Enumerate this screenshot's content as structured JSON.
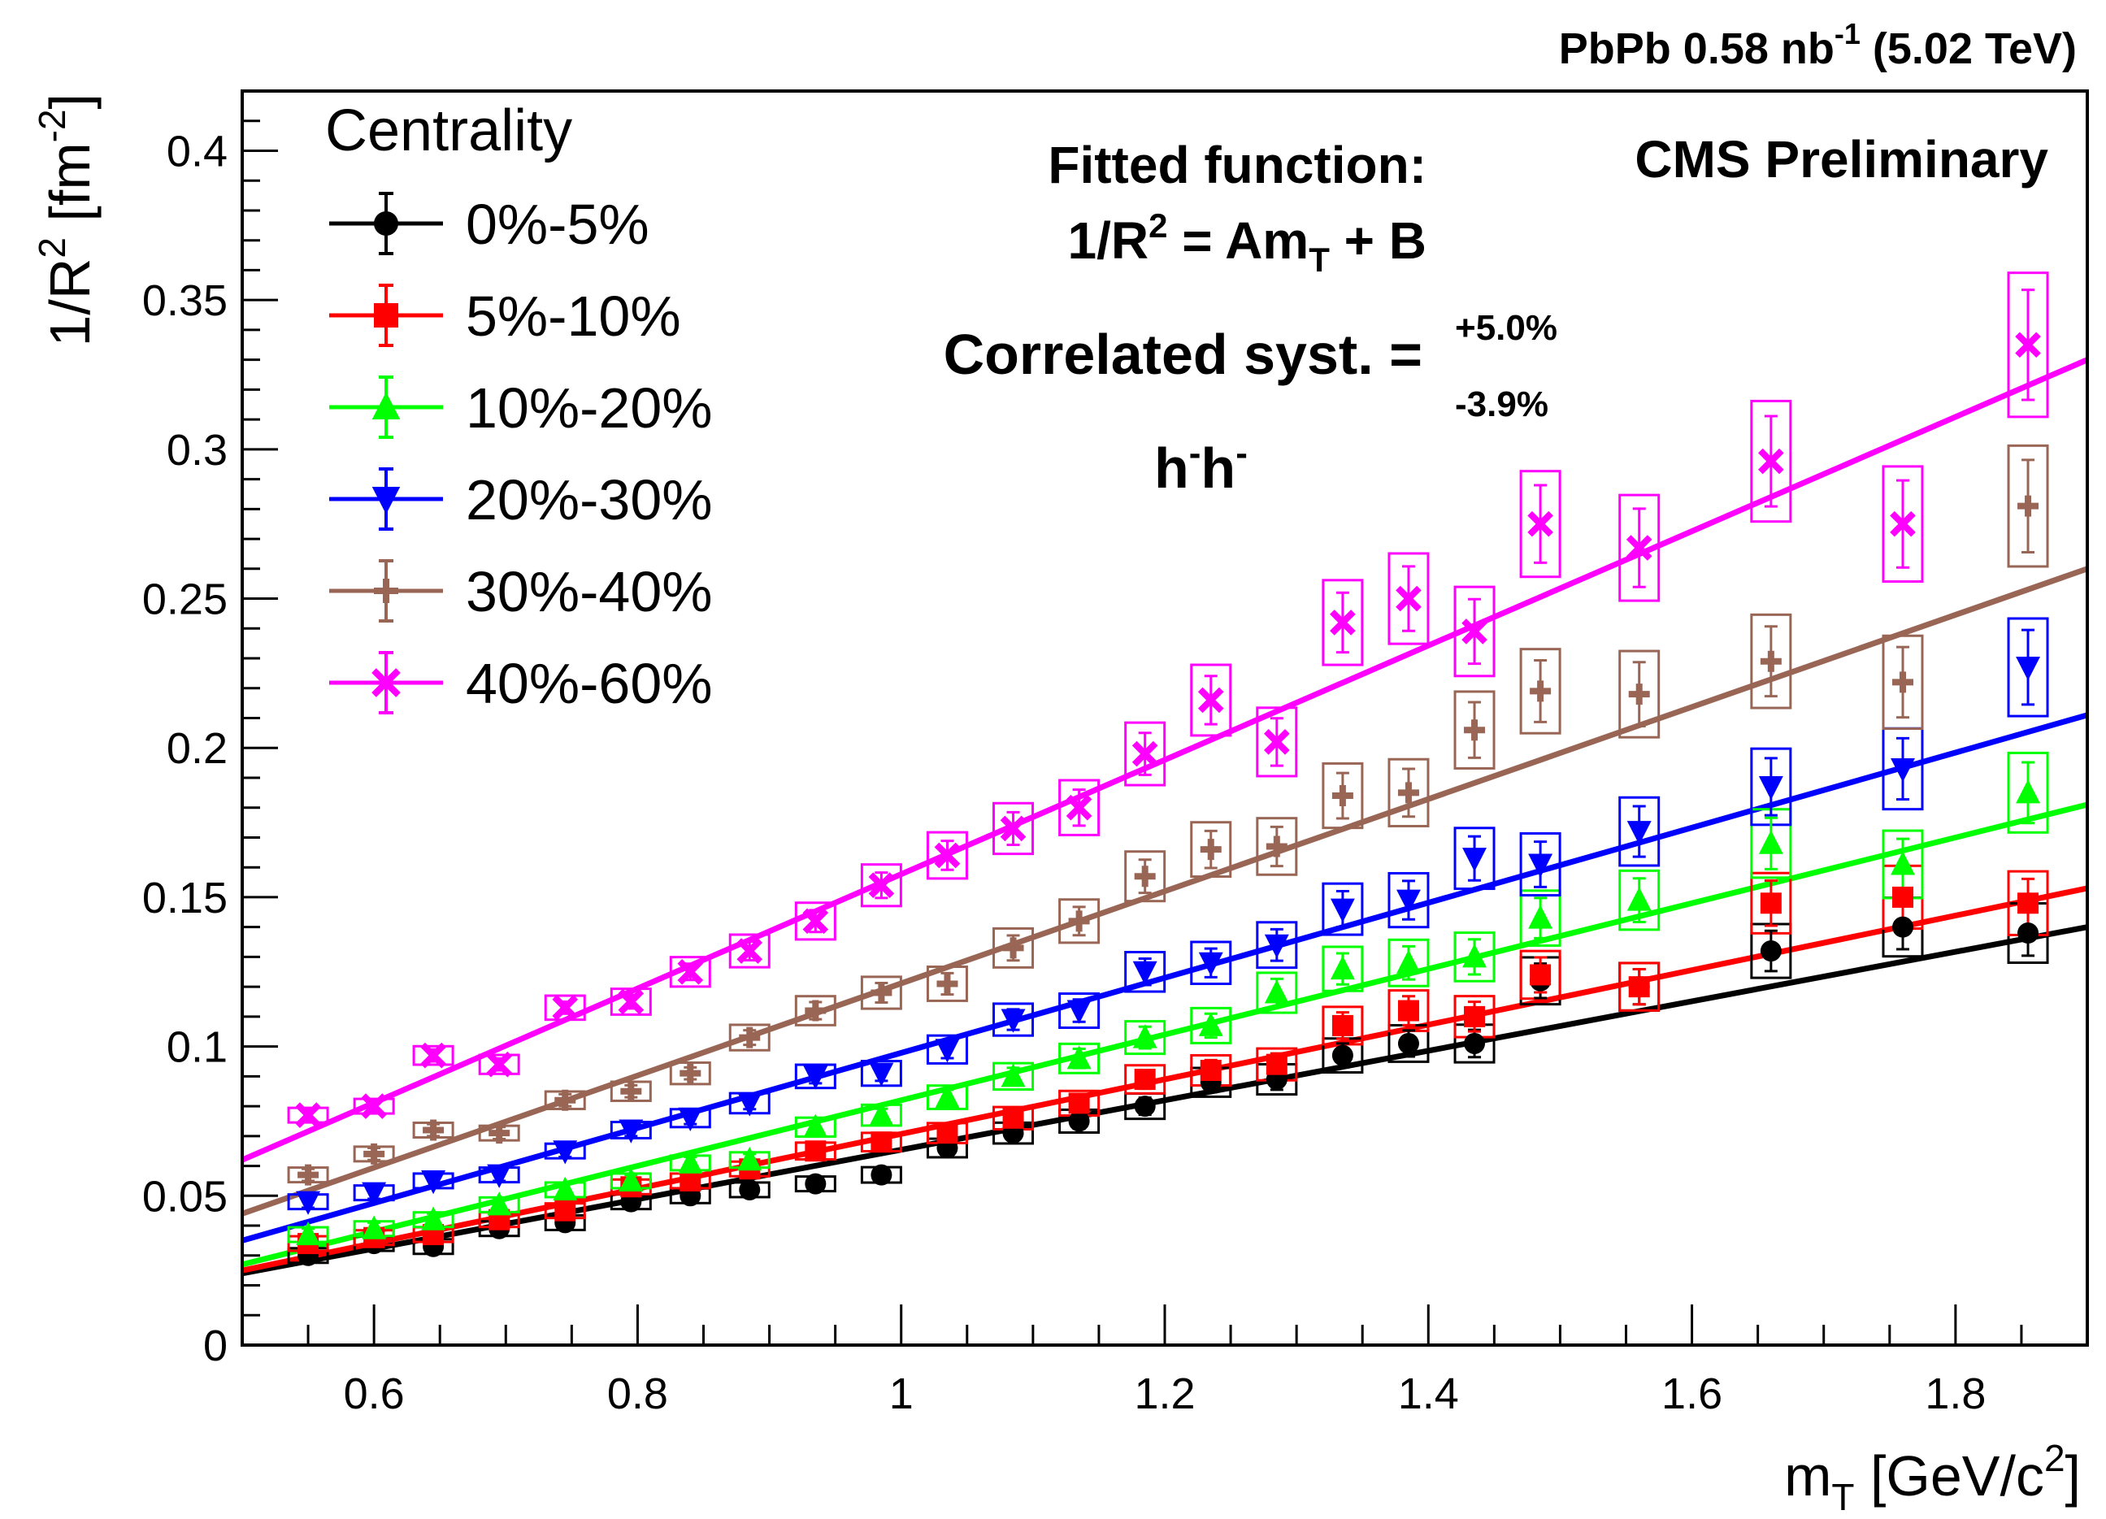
{
  "chart_data": {
    "type": "scatter",
    "header": {
      "left": "PbPb 0.58 nb",
      "exp": "-1",
      "right": " (5.02 TeV)"
    },
    "brand": "CMS Preliminary",
    "xaxis": {
      "main": "m",
      "sub": "T",
      "unit_open": " [GeV/c",
      "sup": "2",
      "close": "]"
    },
    "yaxis": {
      "main": "1/R",
      "sup": "2",
      "mid": " [fm",
      "sup2": "-2",
      "close": "]"
    },
    "xlim": [
      0.5,
      1.9
    ],
    "ylim": [
      0,
      0.42
    ],
    "xticks": [
      "0.6",
      "0.8",
      "1",
      "1.2",
      "1.4",
      "1.6",
      "1.8"
    ],
    "yticks": [
      "0",
      "0.05",
      "0.1",
      "0.15",
      "0.2",
      "0.25",
      "0.3",
      "0.35",
      "0.4"
    ],
    "legend_title": "Centrality",
    "annotations": {
      "fit_title": "Fitted function:",
      "fit_lhs": "1/R",
      "fit_sup": "2",
      "fit_eq": " = Am",
      "fit_sub": "T",
      "fit_rest": " + B",
      "syst_label": "Correlated syst. =",
      "syst_up": "+5.0%",
      "syst_down": "-3.9%",
      "particle_h": "h",
      "particle_sup": "-"
    },
    "x": [
      0.55,
      0.6,
      0.645,
      0.695,
      0.745,
      0.795,
      0.84,
      0.885,
      0.935,
      0.985,
      1.035,
      1.085,
      1.135,
      1.185,
      1.235,
      1.285,
      1.335,
      1.385,
      1.435,
      1.485,
      1.56,
      1.66,
      1.76,
      1.855
    ],
    "series": [
      {
        "name": "0%-5%",
        "color": "#000000",
        "marker": "circle",
        "values": [
          0.03,
          0.034,
          0.033,
          0.039,
          0.041,
          0.048,
          0.05,
          0.052,
          0.054,
          0.057,
          0.066,
          0.071,
          0.075,
          0.08,
          0.088,
          0.089,
          0.097,
          0.101,
          0.101,
          0.122,
          0.12,
          0.132,
          0.14,
          0.138
        ],
        "fit": [
          0.024,
          0.14
        ]
      },
      {
        "name": "5%-10%",
        "color": "#ff0000",
        "marker": "square",
        "values": [
          0.034,
          0.036,
          0.037,
          0.042,
          0.045,
          0.053,
          0.055,
          0.059,
          0.065,
          0.068,
          0.071,
          0.076,
          0.081,
          0.089,
          0.092,
          0.094,
          0.107,
          0.112,
          0.11,
          0.124,
          0.12,
          0.148,
          0.15,
          0.148
        ],
        "fit": [
          0.025,
          0.153
        ]
      },
      {
        "name": "10%-20%",
        "color": "#00ff00",
        "marker": "triangle-up",
        "values": [
          0.037,
          0.039,
          0.042,
          0.047,
          0.052,
          0.055,
          0.061,
          0.062,
          0.073,
          0.077,
          0.083,
          0.09,
          0.096,
          0.103,
          0.107,
          0.118,
          0.126,
          0.128,
          0.13,
          0.143,
          0.149,
          0.168,
          0.161,
          0.185
        ],
        "fit": [
          0.027,
          0.181
        ]
      },
      {
        "name": "20%-30%",
        "color": "#0000ff",
        "marker": "triangle-down",
        "values": [
          0.048,
          0.051,
          0.055,
          0.057,
          0.065,
          0.072,
          0.076,
          0.081,
          0.09,
          0.091,
          0.099,
          0.109,
          0.112,
          0.125,
          0.128,
          0.134,
          0.146,
          0.149,
          0.163,
          0.161,
          0.172,
          0.187,
          0.193,
          0.227
        ],
        "fit": [
          0.035,
          0.211
        ]
      },
      {
        "name": "30%-40%",
        "color": "#996655",
        "marker": "plus",
        "values": [
          0.057,
          0.064,
          0.072,
          0.071,
          0.082,
          0.085,
          0.091,
          0.103,
          0.112,
          0.118,
          0.121,
          0.133,
          0.142,
          0.157,
          0.166,
          0.167,
          0.184,
          0.185,
          0.206,
          0.219,
          0.218,
          0.229,
          0.222,
          0.281
        ],
        "fit": [
          0.044,
          0.26
        ]
      },
      {
        "name": "40%-60%",
        "color": "#ff00ff",
        "marker": "cross",
        "values": [
          0.077,
          0.08,
          0.097,
          0.094,
          0.113,
          0.115,
          0.125,
          0.132,
          0.142,
          0.154,
          0.164,
          0.173,
          0.18,
          0.198,
          0.216,
          0.202,
          0.242,
          0.25,
          0.239,
          0.275,
          0.267,
          0.296,
          0.275,
          0.335
        ],
        "fit": [
          0.062,
          0.33
        ]
      }
    ]
  }
}
